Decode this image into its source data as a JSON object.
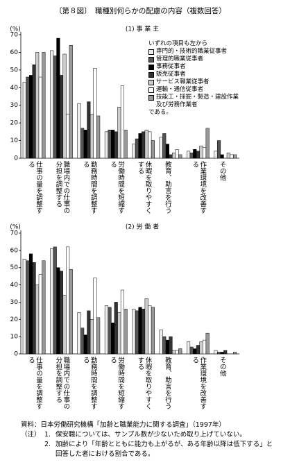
{
  "title": "〔第８図〕　職種別何らかの配慮の内容（複数回答）",
  "chart_data": [
    {
      "type": "bar",
      "title": "(1) 事 業 主",
      "y_label": "(%)",
      "legend_header": "いずれの項目も左から",
      "legend_footer": "である。",
      "categories": [
        "仕事の量を調整する",
        "職場内での仕事の分担を調整する",
        "勤務時間を調整する",
        "労働時間を短縮する",
        "休暇を取りやすくする",
        "教育、助言を行う",
        "作業環境を改善する",
        "その他"
      ],
      "ylim": [
        0,
        70
      ],
      "yticks": [
        0,
        10,
        20,
        30,
        40,
        50,
        60,
        70
      ],
      "series": [
        {
          "name": "専門的・技術的職業従事者",
          "color": "#eeeeee",
          "values": [
            43,
            61,
            31,
            15,
            8,
            12,
            4,
            4
          ]
        },
        {
          "name": "管理的職業従事者",
          "color": "#555555",
          "values": [
            46,
            58,
            17,
            16,
            11,
            14,
            3,
            10
          ]
        },
        {
          "name": "事務従事者",
          "color": "#000000",
          "values": [
            47,
            68,
            16,
            16,
            14,
            8,
            5,
            2
          ]
        },
        {
          "name": "販売従事者",
          "color": "#333333",
          "values": [
            53,
            47,
            32,
            15,
            15,
            2,
            4,
            0
          ]
        },
        {
          "name": "サービス職業従事者",
          "color": "#cccccc",
          "values": [
            60,
            59,
            25,
            29,
            16,
            3,
            7,
            3
          ]
        },
        {
          "name": "運輸・通信従事者",
          "color": "#ffffff",
          "values": [
            46,
            25,
            51,
            41,
            15,
            5,
            6,
            2
          ]
        },
        {
          "name": "技能工・採掘・製造・建設作業及び労務作業者",
          "color": "#999999",
          "values": [
            60,
            64,
            24,
            16,
            10,
            2,
            17,
            2
          ]
        }
      ]
    },
    {
      "type": "bar",
      "title": "(2) 労 働 者",
      "y_label": "(%)",
      "categories": [
        "仕事の量を調整する",
        "職場内での仕事の分担を調整する",
        "勤務時間を調整する",
        "労働時間を短縮する",
        "休暇を取りやすくする",
        "教育、助言を行う",
        "作業環境を改善する",
        "その他"
      ],
      "ylim": [
        0,
        70
      ],
      "yticks": [
        0,
        10,
        20,
        30,
        40,
        50,
        60,
        70
      ],
      "series": [
        {
          "color": "#eeeeee",
          "values": [
            55,
            61,
            24,
            28,
            26,
            14,
            7,
            2
          ]
        },
        {
          "color": "#555555",
          "values": [
            54,
            62,
            15,
            27,
            25,
            10,
            4,
            1
          ]
        },
        {
          "color": "#000000",
          "values": [
            58,
            50,
            11,
            18,
            27,
            8,
            3,
            1
          ]
        },
        {
          "color": "#333333",
          "values": [
            53,
            48,
            25,
            30,
            26,
            10,
            5,
            2
          ]
        },
        {
          "color": "#cccccc",
          "values": [
            40,
            34,
            20,
            24,
            32,
            2,
            7,
            0
          ]
        },
        {
          "color": "#ffffff",
          "values": [
            46,
            62,
            44,
            37,
            28,
            2,
            8,
            0
          ]
        },
        {
          "color": "#999999",
          "values": [
            54,
            49,
            21,
            26,
            27,
            3,
            12,
            1
          ]
        }
      ]
    }
  ],
  "source": "資料：日本労働研究機構「加齢と職業能力に関する調査」（1997年）",
  "notes_label": "（注）",
  "notes": [
    {
      "number": "1.",
      "text": "保安職については、サンプル数が少ないため取り上げていない。"
    },
    {
      "number": "2.",
      "text": "加齢により「年齢とともに能力も上がるが、ある年齢以降は低下する」と回答した者における割合である。"
    }
  ]
}
